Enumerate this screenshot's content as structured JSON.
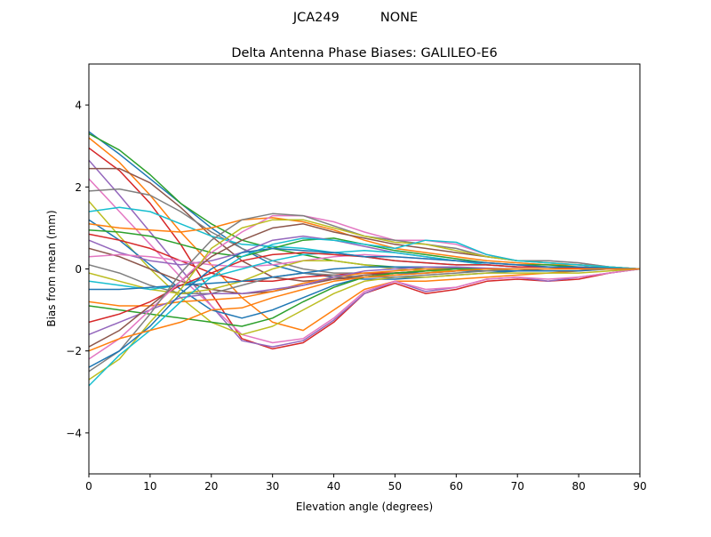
{
  "chart_data": {
    "type": "line",
    "suptitle": "JCA249          NONE",
    "title": "Delta Antenna Phase Biases: GALILEO-E6",
    "xlabel": "Elevation angle (degrees)",
    "ylabel": "Bias from mean (mm)",
    "xlim": [
      0,
      90
    ],
    "ylim": [
      -5,
      5
    ],
    "xticks": [
      0,
      10,
      20,
      30,
      40,
      50,
      60,
      70,
      80,
      90
    ],
    "yticks": [
      -4,
      -2,
      0,
      2,
      4
    ],
    "ytick_labels": [
      "−4",
      "−2",
      "0",
      "2",
      "4"
    ],
    "grid": false,
    "colors": [
      "#1f77b4",
      "#ff7f0e",
      "#2ca02c",
      "#d62728",
      "#9467bd",
      "#8c564b",
      "#e377c2",
      "#7f7f7f",
      "#bcbd22",
      "#17becf"
    ],
    "x": [
      0,
      5,
      10,
      15,
      20,
      25,
      30,
      35,
      40,
      45,
      50,
      55,
      60,
      65,
      70,
      75,
      80,
      85,
      90
    ],
    "series": [
      {
        "values": [
          3.35,
          2.8,
          2.2,
          1.6,
          1.0,
          0.5,
          0.1,
          -0.1,
          -0.2,
          -0.25,
          -0.25,
          -0.2,
          -0.15,
          -0.1,
          -0.05,
          0,
          0,
          0,
          0
        ]
      },
      {
        "values": [
          3.2,
          2.6,
          1.8,
          0.9,
          0.1,
          -0.7,
          -1.3,
          -1.5,
          -1.0,
          -0.5,
          -0.3,
          -0.3,
          -0.25,
          -0.2,
          -0.15,
          -0.1,
          -0.05,
          0,
          0
        ]
      },
      {
        "values": [
          3.3,
          2.9,
          2.3,
          1.6,
          1.1,
          0.7,
          0.5,
          0.35,
          0.2,
          0.1,
          0.05,
          0,
          0,
          0,
          0,
          0,
          0,
          0,
          0
        ]
      },
      {
        "values": [
          2.95,
          2.4,
          1.6,
          0.6,
          -0.6,
          -1.7,
          -1.95,
          -1.8,
          -1.3,
          -0.6,
          -0.35,
          -0.6,
          -0.5,
          -0.3,
          -0.25,
          -0.3,
          -0.25,
          -0.1,
          0
        ]
      },
      {
        "values": [
          2.65,
          1.8,
          0.9,
          0.0,
          -0.9,
          -1.75,
          -1.9,
          -1.75,
          -1.25,
          -0.6,
          -0.3,
          -0.55,
          -0.45,
          -0.25,
          -0.2,
          -0.3,
          -0.2,
          -0.1,
          0
        ]
      },
      {
        "values": [
          2.45,
          2.45,
          2.1,
          1.5,
          0.8,
          0.2,
          -0.2,
          -0.3,
          -0.25,
          -0.2,
          -0.15,
          -0.1,
          -0.05,
          0,
          0,
          0,
          0,
          0,
          0
        ]
      },
      {
        "values": [
          2.2,
          1.4,
          0.6,
          -0.2,
          -0.9,
          -1.6,
          -1.8,
          -1.7,
          -1.2,
          -0.55,
          -0.3,
          -0.5,
          -0.45,
          -0.25,
          -0.2,
          -0.25,
          -0.2,
          -0.1,
          0
        ]
      },
      {
        "values": [
          1.9,
          1.95,
          1.8,
          1.4,
          0.9,
          0.5,
          0.2,
          0.0,
          -0.1,
          -0.1,
          -0.1,
          -0.05,
          0,
          0,
          0,
          0,
          0,
          0,
          0
        ]
      },
      {
        "values": [
          1.65,
          0.8,
          0.0,
          -0.7,
          -1.3,
          -1.6,
          -1.4,
          -1.0,
          -0.6,
          -0.3,
          -0.2,
          -0.2,
          -0.15,
          -0.1,
          -0.1,
          -0.1,
          -0.1,
          -0.05,
          0
        ]
      },
      {
        "values": [
          1.4,
          1.5,
          1.4,
          1.1,
          0.8,
          0.6,
          0.55,
          0.5,
          0.4,
          0.3,
          0.2,
          0.15,
          0.1,
          0.1,
          0.05,
          0.05,
          0.05,
          0.02,
          0
        ]
      },
      {
        "values": [
          1.2,
          0.7,
          0.1,
          -0.5,
          -1.0,
          -1.2,
          -1.0,
          -0.7,
          -0.4,
          -0.2,
          -0.1,
          -0.1,
          -0.05,
          -0.05,
          -0.05,
          -0.05,
          -0.05,
          0,
          0
        ]
      },
      {
        "values": [
          1.1,
          1.0,
          0.95,
          0.9,
          1.0,
          1.2,
          1.25,
          1.15,
          0.95,
          0.7,
          0.5,
          0.4,
          0.3,
          0.2,
          0.15,
          0.1,
          0.1,
          0.05,
          0
        ]
      },
      {
        "values": [
          0.95,
          0.9,
          0.8,
          0.6,
          0.4,
          0.3,
          0.5,
          0.7,
          0.75,
          0.6,
          0.45,
          0.35,
          0.25,
          0.15,
          0.1,
          0.1,
          0.05,
          0.03,
          0
        ]
      },
      {
        "values": [
          0.85,
          0.7,
          0.5,
          0.2,
          -0.1,
          -0.3,
          -0.3,
          -0.2,
          -0.15,
          -0.1,
          -0.1,
          -0.05,
          0,
          0,
          0,
          0,
          0,
          0,
          0
        ]
      },
      {
        "values": [
          0.7,
          0.4,
          0.2,
          0.1,
          0.2,
          0.4,
          0.7,
          0.8,
          0.7,
          0.55,
          0.4,
          0.3,
          0.2,
          0.15,
          0.1,
          0.05,
          0.05,
          0.02,
          0
        ]
      },
      {
        "values": [
          0.5,
          0.3,
          0.0,
          -0.3,
          -0.5,
          -0.6,
          -0.55,
          -0.4,
          -0.25,
          -0.15,
          -0.1,
          -0.05,
          0,
          0,
          0,
          0,
          0,
          0,
          0
        ]
      },
      {
        "values": [
          0.3,
          0.35,
          0.3,
          0.2,
          0.1,
          0.05,
          0.1,
          0.2,
          0.3,
          0.35,
          0.3,
          0.25,
          0.2,
          0.1,
          0.05,
          0.05,
          0.02,
          0,
          0
        ]
      },
      {
        "values": [
          0.1,
          -0.1,
          -0.4,
          -0.6,
          -0.6,
          -0.4,
          -0.2,
          -0.1,
          -0.15,
          -0.2,
          -0.2,
          -0.15,
          -0.1,
          -0.05,
          0,
          0,
          0,
          0,
          0
        ]
      },
      {
        "values": [
          -0.1,
          -0.3,
          -0.5,
          -0.6,
          -0.5,
          -0.3,
          0.0,
          0.2,
          0.2,
          0.1,
          0.0,
          -0.05,
          -0.05,
          0,
          0,
          0,
          0,
          0,
          0
        ]
      },
      {
        "values": [
          -0.3,
          -0.4,
          -0.5,
          -0.4,
          -0.2,
          0.0,
          0.2,
          0.35,
          0.4,
          0.45,
          0.4,
          0.3,
          0.2,
          0.1,
          0.05,
          0.05,
          0.02,
          0,
          0
        ]
      },
      {
        "values": [
          -0.5,
          -0.5,
          -0.45,
          -0.4,
          -0.35,
          -0.3,
          -0.2,
          -0.1,
          0,
          0.05,
          0.05,
          0.05,
          0.02,
          0,
          0,
          0,
          0,
          0,
          0
        ]
      },
      {
        "values": [
          -0.8,
          -0.9,
          -0.9,
          -0.8,
          -0.75,
          -0.7,
          -0.55,
          -0.35,
          -0.2,
          -0.1,
          -0.05,
          0,
          0,
          0,
          0,
          0,
          0,
          0,
          0
        ]
      },
      {
        "values": [
          -0.9,
          -1.0,
          -1.1,
          -1.2,
          -1.3,
          -1.4,
          -1.2,
          -0.8,
          -0.45,
          -0.2,
          -0.1,
          -0.05,
          0,
          0,
          0,
          0,
          0,
          0,
          0
        ]
      },
      {
        "values": [
          -1.3,
          -1.1,
          -0.8,
          -0.4,
          -0.1,
          0.2,
          0.35,
          0.4,
          0.35,
          0.3,
          0.2,
          0.15,
          0.1,
          0.1,
          0.05,
          0.05,
          0.02,
          0,
          0
        ]
      },
      {
        "values": [
          -1.6,
          -1.3,
          -1.0,
          -0.7,
          -0.6,
          -0.6,
          -0.5,
          -0.4,
          -0.2,
          -0.05,
          0.0,
          0.05,
          0.05,
          0.02,
          0,
          0,
          0,
          0,
          0
        ]
      },
      {
        "values": [
          -1.9,
          -1.5,
          -0.9,
          -0.3,
          0.3,
          0.7,
          1.0,
          1.1,
          0.9,
          0.75,
          0.6,
          0.5,
          0.4,
          0.3,
          0.2,
          0.15,
          0.1,
          0.05,
          0
        ]
      },
      {
        "values": [
          -2.2,
          -1.7,
          -1.0,
          -0.3,
          0.4,
          0.9,
          1.3,
          1.3,
          1.15,
          0.9,
          0.7,
          0.7,
          0.6,
          0.35,
          0.2,
          0.2,
          0.15,
          0.05,
          0
        ]
      },
      {
        "values": [
          -2.5,
          -2.0,
          -1.1,
          -0.1,
          0.7,
          1.2,
          1.35,
          1.3,
          1.05,
          0.8,
          0.7,
          0.6,
          0.5,
          0.3,
          0.2,
          0.2,
          0.15,
          0.05,
          0
        ]
      },
      {
        "values": [
          -2.7,
          -2.2,
          -1.3,
          -0.5,
          0.5,
          1.0,
          1.2,
          1.2,
          1.0,
          0.8,
          0.65,
          0.6,
          0.45,
          0.3,
          0.2,
          0.15,
          0.1,
          0.05,
          0
        ]
      },
      {
        "values": [
          -2.85,
          -2.1,
          -1.5,
          -0.8,
          -0.2,
          0.3,
          0.6,
          0.75,
          0.7,
          0.6,
          0.5,
          0.7,
          0.65,
          0.35,
          0.2,
          0.15,
          0.1,
          0.05,
          0
        ]
      },
      {
        "values": [
          -2.4,
          -2.0,
          -1.4,
          -0.6,
          0.0,
          0.4,
          0.5,
          0.45,
          0.4,
          0.3,
          0.3,
          0.25,
          0.2,
          0.15,
          0.1,
          0.05,
          0.05,
          0.02,
          0
        ]
      },
      {
        "values": [
          -2.0,
          -1.7,
          -1.5,
          -1.3,
          -1.0,
          -0.95,
          -0.7,
          -0.5,
          -0.3,
          -0.2,
          -0.15,
          -0.1,
          -0.05,
          0,
          0,
          0,
          0,
          0,
          0
        ]
      }
    ]
  }
}
